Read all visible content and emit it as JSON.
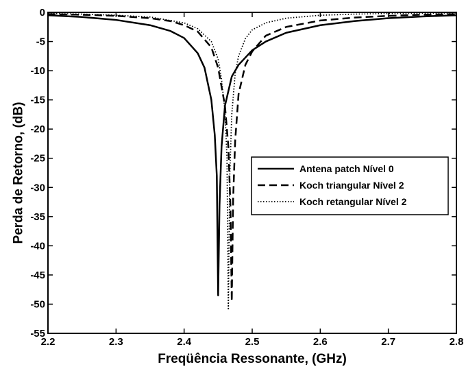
{
  "chart_data": {
    "type": "line",
    "xlabel": "Freqüência Ressonante, (GHz)",
    "ylabel": "Perda de Retorno, (dB)",
    "xlim": [
      2.2,
      2.8
    ],
    "ylim": [
      -55,
      0
    ],
    "xticks": [
      "2.2",
      "2.3",
      "2.4",
      "2.5",
      "2.6",
      "2.7",
      "2.8"
    ],
    "yticks": [
      "0",
      "-5",
      "-10",
      "-15",
      "-20",
      "-25",
      "-30",
      "-35",
      "-40",
      "-45",
      "-50",
      "-55"
    ],
    "grid": false,
    "legend_position": "right",
    "series": [
      {
        "name": "Antena patch Nível 0",
        "style": "solid",
        "color": "#000000",
        "x": [
          2.2,
          2.25,
          2.3,
          2.35,
          2.38,
          2.4,
          2.42,
          2.43,
          2.44,
          2.445,
          2.448,
          2.45,
          2.452,
          2.455,
          2.46,
          2.47,
          2.48,
          2.5,
          2.52,
          2.55,
          2.6,
          2.65,
          2.7,
          2.75,
          2.8
        ],
        "y": [
          -0.5,
          -0.8,
          -1.3,
          -2.2,
          -3.2,
          -4.4,
          -7.0,
          -9.5,
          -15.0,
          -21.0,
          -28.0,
          -48.5,
          -33.0,
          -23.0,
          -16.0,
          -11.0,
          -9.0,
          -6.5,
          -5.0,
          -3.5,
          -2.2,
          -1.5,
          -1.0,
          -0.7,
          -0.5
        ]
      },
      {
        "name": "Koch triangular Nível 2",
        "style": "dashed",
        "color": "#000000",
        "x": [
          2.2,
          2.25,
          2.3,
          2.35,
          2.38,
          2.4,
          2.42,
          2.44,
          2.45,
          2.46,
          2.465,
          2.468,
          2.47,
          2.472,
          2.475,
          2.48,
          2.49,
          2.5,
          2.52,
          2.55,
          2.6,
          2.65,
          2.7,
          2.75,
          2.8
        ],
        "y": [
          -0.3,
          -0.4,
          -0.6,
          -1.0,
          -1.5,
          -2.2,
          -3.3,
          -6.0,
          -9.5,
          -16.0,
          -23.0,
          -33.0,
          -49.5,
          -32.0,
          -22.0,
          -14.0,
          -9.0,
          -6.7,
          -4.0,
          -2.5,
          -1.4,
          -0.9,
          -0.6,
          -0.4,
          -0.3
        ]
      },
      {
        "name": "Koch retangular Nível 2",
        "style": "dotted",
        "color": "#000000",
        "x": [
          2.2,
          2.25,
          2.3,
          2.35,
          2.4,
          2.42,
          2.44,
          2.45,
          2.455,
          2.46,
          2.463,
          2.465,
          2.467,
          2.47,
          2.475,
          2.48,
          2.49,
          2.5,
          2.52,
          2.55,
          2.6,
          2.65,
          2.7,
          2.75,
          2.8
        ],
        "y": [
          -0.2,
          -0.3,
          -0.5,
          -0.8,
          -1.8,
          -2.8,
          -5.0,
          -8.0,
          -11.5,
          -17.0,
          -25.0,
          -51.0,
          -28.0,
          -17.5,
          -10.5,
          -7.5,
          -4.5,
          -3.0,
          -1.8,
          -1.0,
          -0.5,
          -0.3,
          -0.2,
          -0.15,
          -0.1
        ]
      }
    ]
  }
}
